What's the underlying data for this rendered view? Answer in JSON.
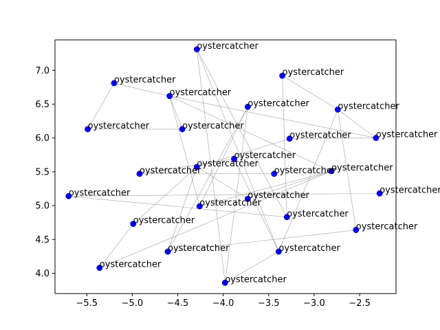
{
  "chart_data": {
    "type": "scatter",
    "title": "",
    "xlabel": "",
    "ylabel": "",
    "xlim": [
      -5.85,
      -2.1
    ],
    "ylim": [
      3.7,
      7.45
    ],
    "xticks": [
      -5.5,
      -5.0,
      -4.5,
      -4.0,
      -3.5,
      -3.0,
      -2.5
    ],
    "xtick_labels": [
      "−5.5",
      "−5.0",
      "−4.5",
      "−4.0",
      "−3.5",
      "−3.0",
      "−2.5"
    ],
    "yticks": [
      4.0,
      4.5,
      5.0,
      5.5,
      6.0,
      6.5,
      7.0
    ],
    "ytick_labels": [
      "4.0",
      "4.5",
      "5.0",
      "5.5",
      "6.0",
      "6.5",
      "7.0"
    ],
    "grid": false,
    "point_color": "#0000ff",
    "edge_color": "#a0a0a0",
    "points": [
      {
        "x": -4.29,
        "y": 7.31,
        "label": "oystercatcher"
      },
      {
        "x": -3.35,
        "y": 6.92,
        "label": "oystercatcher"
      },
      {
        "x": -5.2,
        "y": 6.81,
        "label": "oystercatcher"
      },
      {
        "x": -4.59,
        "y": 6.62,
        "label": "oystercatcher"
      },
      {
        "x": -3.73,
        "y": 6.46,
        "label": "oystercatcher"
      },
      {
        "x": -2.74,
        "y": 6.42,
        "label": "oystercatcher"
      },
      {
        "x": -5.49,
        "y": 6.13,
        "label": "oystercatcher"
      },
      {
        "x": -4.45,
        "y": 6.13,
        "label": "oystercatcher"
      },
      {
        "x": -3.27,
        "y": 5.99,
        "label": "oystercatcher"
      },
      {
        "x": -2.32,
        "y": 6.0,
        "label": "oystercatcher"
      },
      {
        "x": -3.88,
        "y": 5.69,
        "label": "oystercatcher"
      },
      {
        "x": -4.29,
        "y": 5.57,
        "label": "oystercatcher"
      },
      {
        "x": -4.92,
        "y": 5.47,
        "label": "oystercatcher"
      },
      {
        "x": -3.44,
        "y": 5.47,
        "label": "oystercatcher"
      },
      {
        "x": -2.81,
        "y": 5.51,
        "label": "oystercatcher"
      },
      {
        "x": -5.7,
        "y": 5.14,
        "label": "oystercatcher"
      },
      {
        "x": -2.28,
        "y": 5.18,
        "label": "oystercatcher"
      },
      {
        "x": -3.73,
        "y": 5.1,
        "label": "oystercatcher"
      },
      {
        "x": -4.26,
        "y": 4.99,
        "label": "oystercatcher"
      },
      {
        "x": -3.3,
        "y": 4.83,
        "label": "oystercatcher"
      },
      {
        "x": -4.99,
        "y": 4.73,
        "label": "oystercatcher"
      },
      {
        "x": -2.54,
        "y": 4.64,
        "label": "oystercatcher"
      },
      {
        "x": -4.61,
        "y": 4.32,
        "label": "oystercatcher"
      },
      {
        "x": -3.39,
        "y": 4.32,
        "label": "oystercatcher"
      },
      {
        "x": -5.36,
        "y": 4.08,
        "label": "oystercatcher"
      },
      {
        "x": -3.98,
        "y": 3.86,
        "label": "oystercatcher"
      }
    ],
    "edges": [
      [
        0,
        25
      ],
      [
        0,
        23
      ],
      [
        0,
        19
      ],
      [
        1,
        5
      ],
      [
        1,
        19
      ],
      [
        2,
        3
      ],
      [
        2,
        6
      ],
      [
        3,
        7
      ],
      [
        3,
        9
      ],
      [
        3,
        14
      ],
      [
        3,
        18
      ],
      [
        4,
        22
      ],
      [
        4,
        25
      ],
      [
        4,
        18
      ],
      [
        5,
        9
      ],
      [
        5,
        21
      ],
      [
        5,
        23
      ],
      [
        6,
        7
      ],
      [
        8,
        9
      ],
      [
        8,
        11
      ],
      [
        10,
        12
      ],
      [
        10,
        23
      ],
      [
        11,
        20
      ],
      [
        11,
        17
      ],
      [
        11,
        22
      ],
      [
        12,
        13
      ],
      [
        14,
        17
      ],
      [
        14,
        18
      ],
      [
        15,
        16
      ],
      [
        15,
        19
      ],
      [
        20,
        24
      ],
      [
        21,
        22
      ],
      [
        23,
        25
      ],
      [
        24,
        14
      ]
    ]
  }
}
